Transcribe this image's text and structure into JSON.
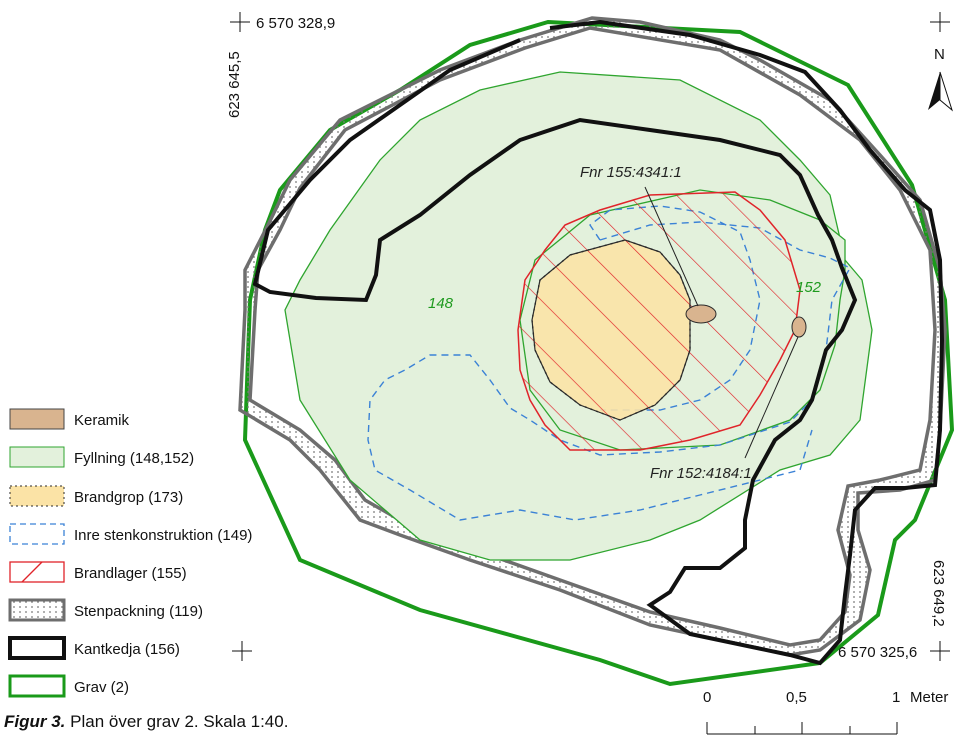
{
  "coordinates": {
    "top_northing": "6 570 328,9",
    "top_easting": "623 645,5",
    "bottom_northing": "6 570 325,6",
    "bottom_easting": "623 649,2"
  },
  "north_arrow": {
    "label": "N"
  },
  "features": {
    "fill_148": "148",
    "fill_152": "152",
    "find_1": "Fnr 155:4341:1",
    "find_2": "Fnr 152:4184:1"
  },
  "legend": {
    "items": [
      {
        "id": "keramik",
        "label": "Keramik",
        "color": "#d9b48f"
      },
      {
        "id": "fyllning",
        "label": "Fyllning (148,152)",
        "color": "#e3f1dc"
      },
      {
        "id": "brandgrop",
        "label": "Brandgrop (173)",
        "color": "#fbe3a6"
      },
      {
        "id": "inre",
        "label": "Inre stenkonstruktion (149)",
        "color": "#3b82d6"
      },
      {
        "id": "brandlager",
        "label": "Brandlager (155)",
        "color": "#e0242a"
      },
      {
        "id": "stenpackning",
        "label": "Stenpackning (119)",
        "color": "#8a8a8a"
      },
      {
        "id": "kantkedja",
        "label": "Kantkedja (156)",
        "color": "#111111"
      },
      {
        "id": "grav",
        "label": "Grav (2)",
        "color": "#1a9a1a"
      }
    ]
  },
  "scale_bar": {
    "ticks": [
      "0",
      "0,5",
      "1"
    ],
    "unit": "Meter"
  },
  "caption": {
    "label": "Figur 3.",
    "text": "Plan över grav 2. Skala 1:40."
  }
}
